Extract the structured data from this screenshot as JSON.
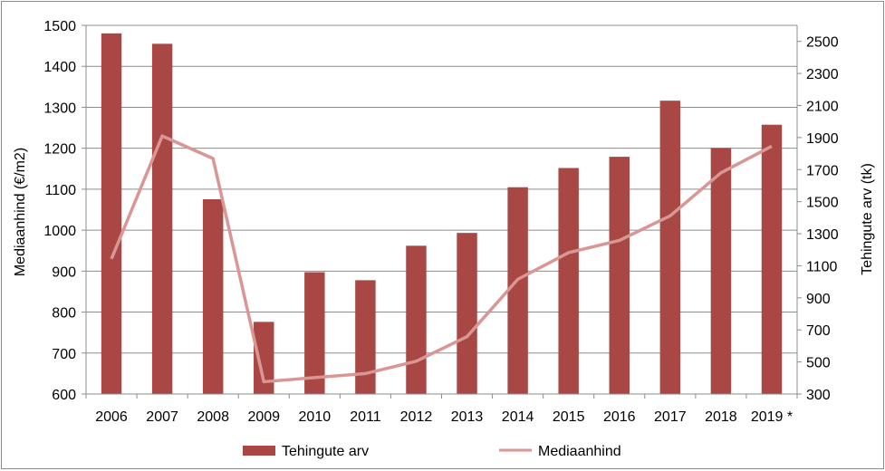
{
  "chart_data": {
    "type": "bar+line",
    "categories": [
      "2006",
      "2007",
      "2008",
      "2009",
      "2010",
      "2011",
      "2012",
      "2013",
      "2014",
      "2015",
      "2016",
      "2017",
      "2018",
      "2019 *"
    ],
    "series": [
      {
        "name": "Tehingute arv",
        "type": "bar",
        "axis": "right",
        "color": "#a84743",
        "values": [
          2550,
          2485,
          1515,
          750,
          1060,
          1010,
          1225,
          1305,
          1590,
          1710,
          1780,
          2130,
          1835,
          1980
        ]
      },
      {
        "name": "Mediaanhind",
        "type": "line",
        "axis": "left",
        "color": "#d99694",
        "values": [
          930,
          1230,
          1175,
          630,
          640,
          650,
          680,
          740,
          880,
          945,
          975,
          1035,
          1140,
          1205
        ]
      }
    ],
    "left_axis": {
      "label": "Mediaanhind (€/m2)",
      "min": 600,
      "max": 1500,
      "ticks": [
        600,
        700,
        800,
        900,
        1000,
        1100,
        1200,
        1300,
        1400,
        1500
      ]
    },
    "right_axis": {
      "label": "Tehingute arv (tk)",
      "min": 300,
      "max": 2600,
      "ticks": [
        300,
        500,
        700,
        900,
        1100,
        1300,
        1500,
        1700,
        1900,
        2100,
        2300,
        2500
      ]
    },
    "grid": true,
    "legend_position": "bottom"
  }
}
